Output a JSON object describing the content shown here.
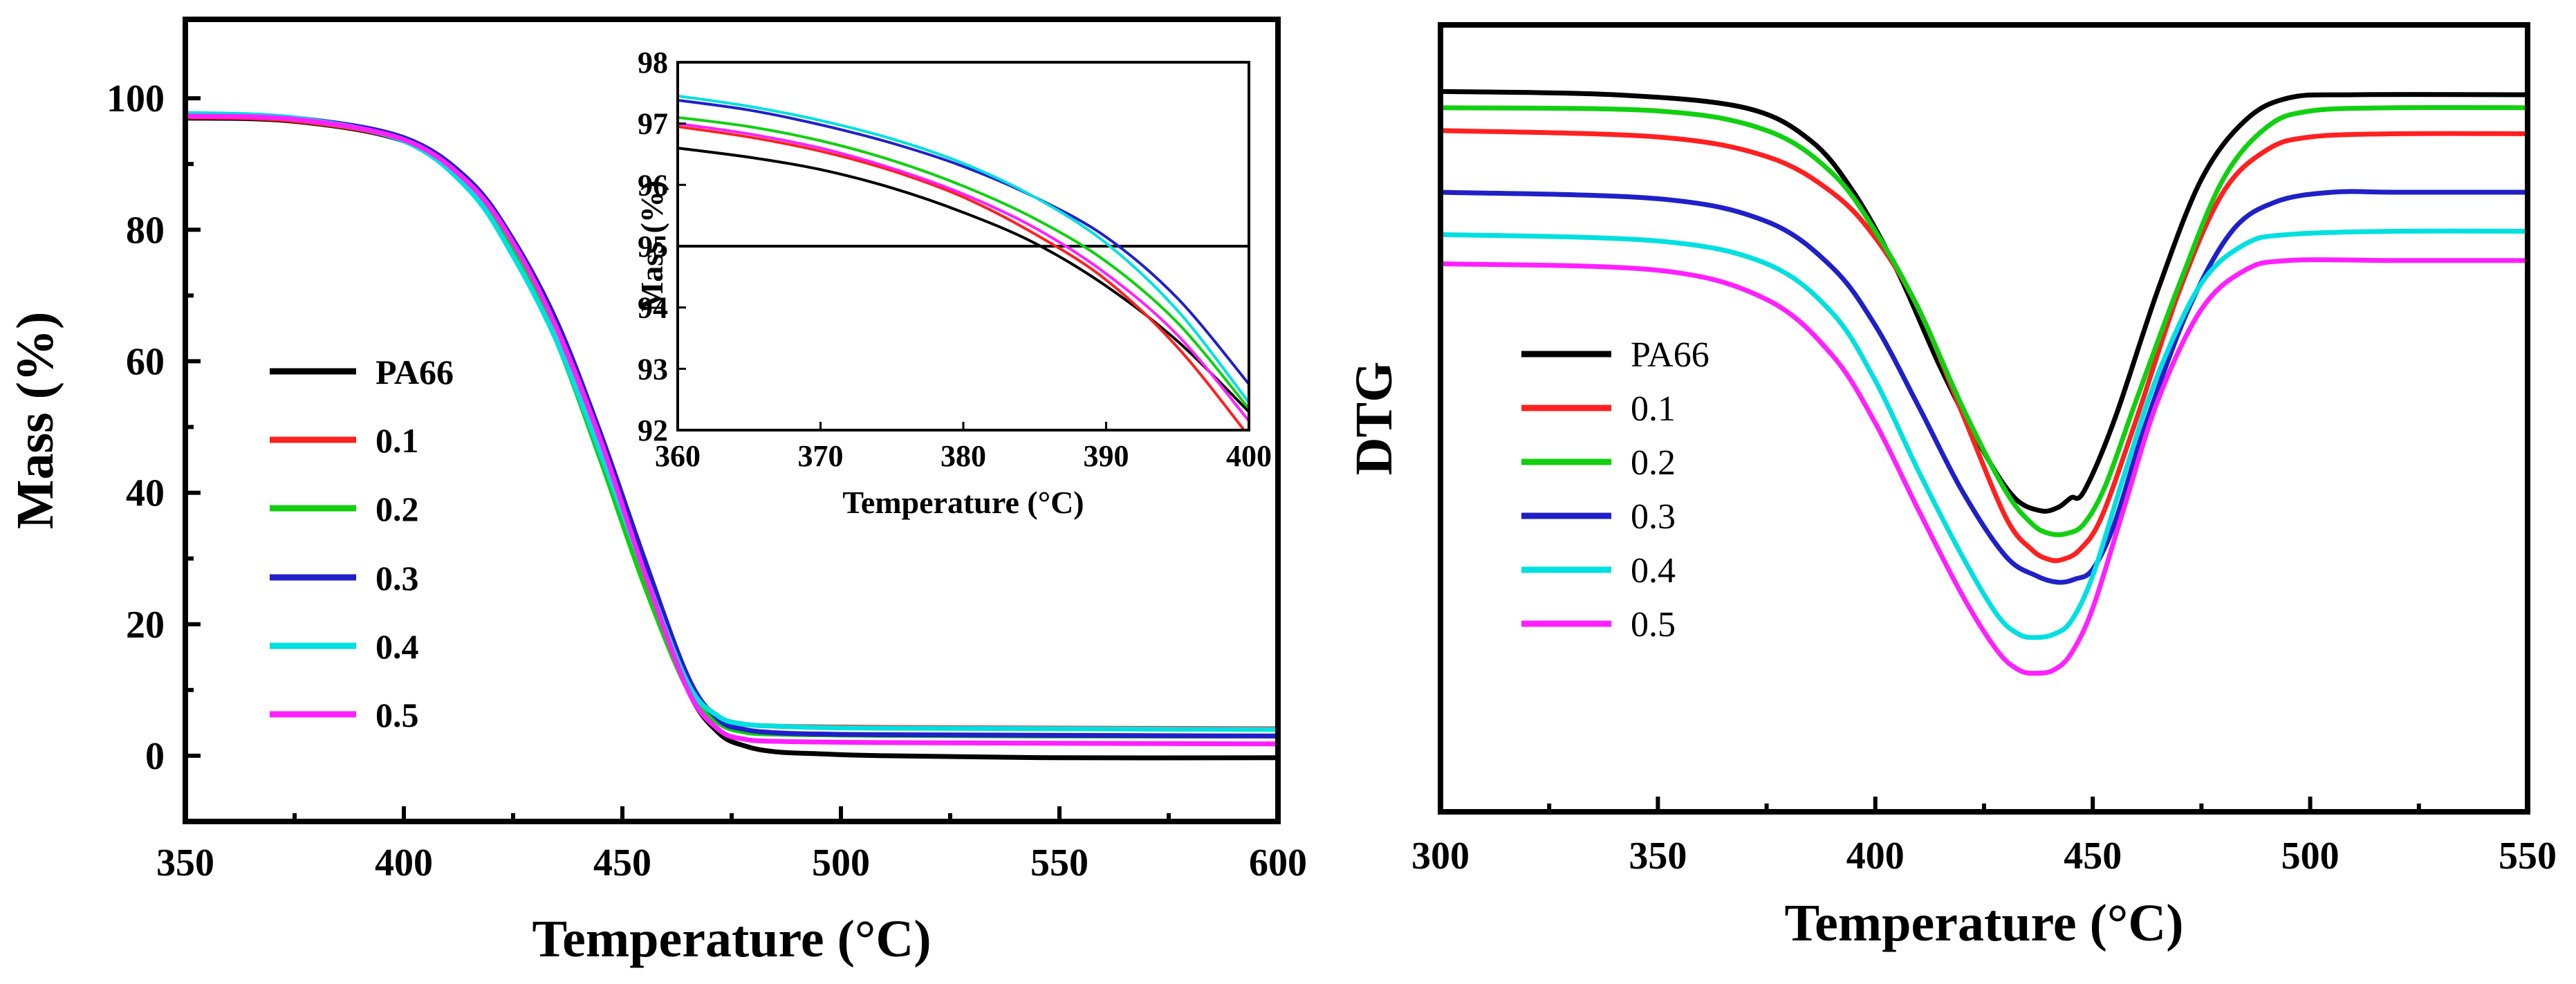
{
  "chart_data": [
    {
      "id": "tga",
      "type": "line",
      "title": "",
      "xlabel": "Temperature (°C)",
      "ylabel": "Mass (%)",
      "xlim": [
        350,
        600
      ],
      "ylim": [
        -10,
        112
      ],
      "xticks": [
        350,
        400,
        450,
        500,
        550,
        600
      ],
      "yticks": [
        0,
        20,
        40,
        60,
        80,
        100
      ],
      "grid": false,
      "legend_position": "center-left",
      "series": [
        {
          "name": "PA66",
          "color": "#000000",
          "x": [
            350,
            375,
            400,
            415,
            425,
            435,
            445,
            455,
            465,
            472,
            478,
            485,
            495,
            510,
            550,
            600
          ],
          "y": [
            97,
            96.5,
            93.5,
            87,
            78,
            65,
            48,
            28,
            10,
            3.5,
            1.5,
            0.6,
            0.3,
            0,
            -0.3,
            -0.3
          ]
        },
        {
          "name": "0.1",
          "color": "#ff2020",
          "x": [
            350,
            375,
            400,
            415,
            425,
            435,
            445,
            455,
            465,
            472,
            478,
            485,
            495,
            510,
            550,
            600
          ],
          "y": [
            97.2,
            96.6,
            93.6,
            87,
            78,
            65,
            47,
            27,
            11,
            6,
            4.8,
            4.5,
            4.4,
            4.3,
            4.2,
            4.1
          ]
        },
        {
          "name": "0.2",
          "color": "#10d010",
          "x": [
            350,
            375,
            400,
            415,
            425,
            435,
            445,
            455,
            465,
            472,
            478,
            485,
            495,
            510,
            550,
            600
          ],
          "y": [
            97.4,
            96.8,
            93.6,
            86.5,
            77,
            63,
            45,
            26,
            10,
            5,
            3.6,
            3.3,
            3.2,
            3.1,
            3,
            3
          ]
        },
        {
          "name": "0.3",
          "color": "#2020c8",
          "x": [
            350,
            375,
            400,
            415,
            425,
            435,
            445,
            455,
            465,
            472,
            478,
            485,
            495,
            510,
            550,
            600
          ],
          "y": [
            97.6,
            97,
            94,
            87.5,
            78.5,
            66,
            49,
            30,
            12,
            5.5,
            4,
            3.5,
            3.3,
            3.2,
            3.1,
            3
          ]
        },
        {
          "name": "0.4",
          "color": "#00e0e0",
          "x": [
            350,
            375,
            400,
            415,
            425,
            435,
            445,
            455,
            465,
            472,
            478,
            485,
            495,
            510,
            550,
            600
          ],
          "y": [
            97.7,
            97,
            93.5,
            86,
            76,
            63,
            46,
            28,
            11,
            6,
            4.8,
            4.5,
            4.3,
            4.2,
            4.1,
            4
          ]
        },
        {
          "name": "0.5",
          "color": "#ff20ff",
          "x": [
            350,
            375,
            400,
            415,
            425,
            435,
            445,
            455,
            465,
            472,
            478,
            485,
            495,
            510,
            550,
            600
          ],
          "y": [
            97.3,
            96.8,
            93.7,
            87,
            78,
            65,
            48,
            28,
            10,
            4,
            2.5,
            2.2,
            2.1,
            2,
            1.9,
            1.8
          ]
        }
      ],
      "inset": {
        "xlabel": "Temperature (°C)",
        "ylabel": "Mass (%)",
        "xlim": [
          360,
          400
        ],
        "ylim": [
          92,
          98
        ],
        "xticks": [
          360,
          370,
          380,
          390,
          400
        ],
        "yticks": [
          92,
          93,
          94,
          95,
          96,
          97,
          98
        ],
        "reference_line_y": 95,
        "series": [
          {
            "name": "PA66",
            "color": "#000000",
            "x": [
              360,
              365,
              370,
              375,
              380,
              385,
              390,
              395,
              400
            ],
            "y": [
              96.6,
              96.45,
              96.25,
              95.95,
              95.55,
              95.05,
              94.35,
              93.45,
              92.3
            ]
          },
          {
            "name": "0.1",
            "color": "#ff2020",
            "x": [
              360,
              365,
              370,
              375,
              380,
              385,
              390,
              395,
              400
            ],
            "y": [
              96.95,
              96.78,
              96.55,
              96.23,
              95.8,
              95.2,
              94.45,
              93.35,
              91.9
            ]
          },
          {
            "name": "0.2",
            "color": "#10d010",
            "x": [
              360,
              365,
              370,
              375,
              380,
              385,
              390,
              395,
              400
            ],
            "y": [
              97.1,
              96.95,
              96.72,
              96.4,
              95.98,
              95.45,
              94.75,
              93.75,
              92.35
            ]
          },
          {
            "name": "0.3",
            "color": "#2020c8",
            "x": [
              360,
              365,
              370,
              375,
              380,
              385,
              390,
              395,
              400
            ],
            "y": [
              97.38,
              97.22,
              96.98,
              96.68,
              96.3,
              95.8,
              95.15,
              94.15,
              92.75
            ]
          },
          {
            "name": "0.4",
            "color": "#00e0e0",
            "x": [
              360,
              365,
              370,
              375,
              380,
              385,
              390,
              395,
              400
            ],
            "y": [
              97.45,
              97.28,
              97.05,
              96.75,
              96.35,
              95.8,
              95.05,
              93.95,
              92.45
            ]
          },
          {
            "name": "0.5",
            "color": "#ff20ff",
            "x": [
              360,
              365,
              370,
              375,
              380,
              385,
              390,
              395,
              400
            ],
            "y": [
              97.0,
              96.83,
              96.6,
              96.27,
              95.85,
              95.3,
              94.55,
              93.55,
              92.15
            ]
          }
        ]
      }
    },
    {
      "id": "dtg",
      "type": "line",
      "title": "",
      "xlabel": "Temperature (°C)",
      "ylabel": "DTG",
      "xlim": [
        300,
        550
      ],
      "ylim": [
        0,
        100
      ],
      "xticks": [
        300,
        350,
        400,
        450,
        500,
        550
      ],
      "yticks": [],
      "grid": false,
      "legend_position": "center-left",
      "series": [
        {
          "name": "PA66",
          "color": "#000000",
          "x": [
            300,
            340,
            370,
            385,
            395,
            405,
            415,
            425,
            432,
            438,
            442,
            445,
            448,
            455,
            465,
            475,
            485,
            495,
            510,
            550
          ],
          "y": [
            95.5,
            95,
            93,
            88,
            80,
            68,
            53,
            40,
            33,
            31,
            31.5,
            33,
            34,
            45,
            65,
            82,
            91,
            94.5,
            95,
            95
          ]
        },
        {
          "name": "0.1",
          "color": "#ff2020",
          "x": [
            300,
            350,
            375,
            390,
            400,
            410,
            420,
            430,
            436,
            440,
            443,
            447,
            452,
            460,
            470,
            480,
            490,
            500,
            520,
            550
          ],
          "y": [
            89.5,
            88.5,
            85.5,
            80,
            73,
            62,
            46,
            30,
            25,
            23.5,
            23.5,
            25,
            30,
            45,
            65,
            80,
            86.5,
            88.5,
            89,
            89
          ]
        },
        {
          "name": "0.2",
          "color": "#10d010",
          "x": [
            300,
            350,
            375,
            390,
            400,
            410,
            420,
            430,
            436,
            440,
            444,
            448,
            453,
            460,
            470,
            480,
            490,
            500,
            520,
            550
          ],
          "y": [
            93,
            92.5,
            89.5,
            83,
            74,
            62,
            47,
            34,
            29,
            27.5,
            27.5,
            29,
            35,
            48,
            66,
            82,
            90,
            92.5,
            93,
            93
          ]
        },
        {
          "name": "0.3",
          "color": "#2020c8",
          "x": [
            300,
            350,
            375,
            390,
            400,
            410,
            420,
            430,
            437,
            442,
            446,
            450,
            455,
            462,
            472,
            482,
            492,
            505,
            520,
            550
          ],
          "y": [
            80,
            79,
            75.5,
            68.5,
            59.5,
            47,
            34,
            24,
            21,
            20,
            20.5,
            22,
            29,
            44,
            62,
            74,
            78.5,
            80,
            80,
            80
          ]
        },
        {
          "name": "0.4",
          "color": "#00e0e0",
          "x": [
            300,
            350,
            375,
            390,
            400,
            410,
            420,
            428,
            433,
            437,
            441,
            445,
            450,
            457,
            465,
            475,
            485,
            495,
            520,
            550
          ],
          "y": [
            73.5,
            72.5,
            69,
            61.5,
            51,
            37,
            24,
            15,
            12,
            11.5,
            12,
            14,
            21,
            36,
            52,
            66,
            72,
            73.5,
            74,
            74
          ]
        },
        {
          "name": "0.5",
          "color": "#ff20ff",
          "x": [
            300,
            350,
            375,
            390,
            400,
            410,
            420,
            428,
            433,
            437,
            441,
            445,
            450,
            457,
            465,
            475,
            485,
            495,
            520,
            550
          ],
          "y": [
            69,
            68,
            63.5,
            55,
            44.5,
            31,
            18,
            9.5,
            6.5,
            6,
            6.5,
            9,
            16,
            31,
            48,
            62,
            68,
            69.5,
            69.5,
            69.5
          ]
        }
      ]
    }
  ]
}
